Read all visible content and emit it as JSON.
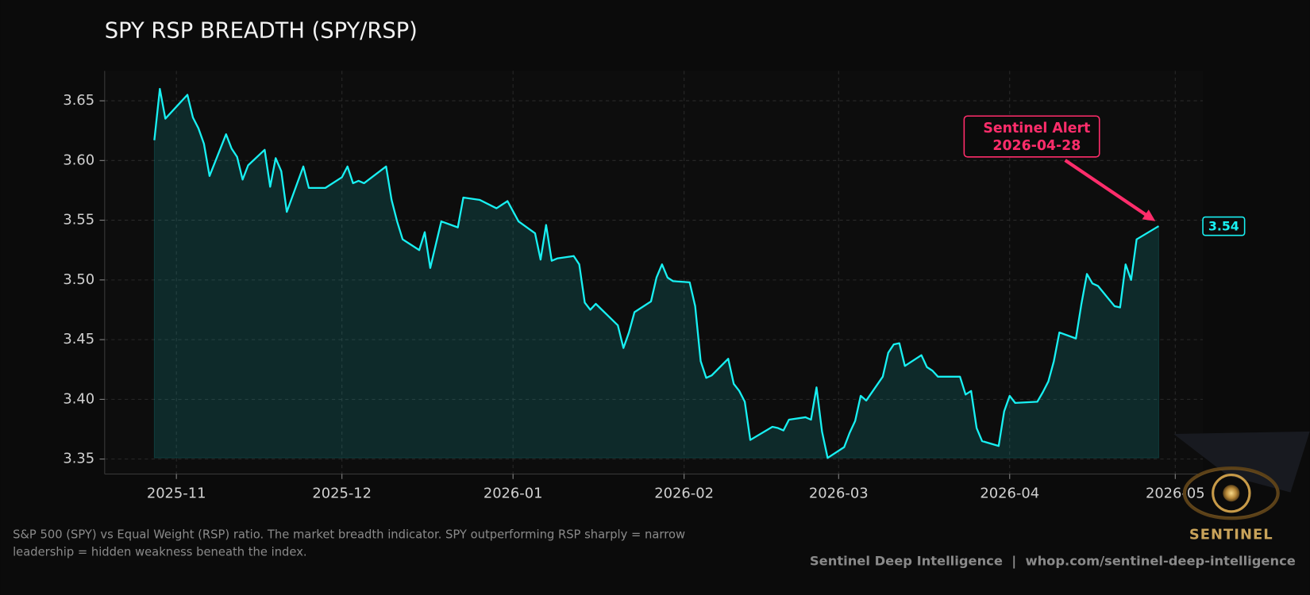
{
  "chart_data": {
    "type": "line",
    "title": "SPY RSP BREADTH (SPY/RSP)",
    "color": "#18f0f2",
    "x": [
      "2025-10-28",
      "2025-10-29",
      "2025-10-30",
      "2025-11-03",
      "2025-11-04",
      "2025-11-05",
      "2025-11-06",
      "2025-11-07",
      "2025-11-10",
      "2025-11-11",
      "2025-11-12",
      "2025-11-13",
      "2025-11-14",
      "2025-11-17",
      "2025-11-18",
      "2025-11-19",
      "2025-11-20",
      "2025-11-21",
      "2025-11-24",
      "2025-11-25",
      "2025-11-28",
      "2025-12-01",
      "2025-12-02",
      "2025-12-03",
      "2025-12-04",
      "2025-12-05",
      "2025-12-09",
      "2025-12-10",
      "2025-12-11",
      "2025-12-12",
      "2025-12-15",
      "2025-12-16",
      "2025-12-17",
      "2025-12-19",
      "2025-12-22",
      "2025-12-23",
      "2025-12-26",
      "2025-12-29",
      "2025-12-30",
      "2025-12-31",
      "2026-01-02",
      "2026-01-05",
      "2026-01-06",
      "2026-01-07",
      "2026-01-08",
      "2026-01-09",
      "2026-01-12",
      "2026-01-13",
      "2026-01-14",
      "2026-01-15",
      "2026-01-16",
      "2026-01-20",
      "2026-01-21",
      "2026-01-22",
      "2026-01-23",
      "2026-01-26",
      "2026-01-27",
      "2026-01-28",
      "2026-01-29",
      "2026-01-30",
      "2026-02-02",
      "2026-02-03",
      "2026-02-04",
      "2026-02-05",
      "2026-02-06",
      "2026-02-09",
      "2026-02-10",
      "2026-02-11",
      "2026-02-12",
      "2026-02-13",
      "2026-02-17",
      "2026-02-18",
      "2026-02-19",
      "2026-02-20",
      "2026-02-23",
      "2026-02-24",
      "2026-02-25",
      "2026-02-26",
      "2026-02-27",
      "2026-03-02",
      "2026-03-03",
      "2026-03-04",
      "2026-03-05",
      "2026-03-06",
      "2026-03-09",
      "2026-03-10",
      "2026-03-11",
      "2026-03-12",
      "2026-03-13",
      "2026-03-16",
      "2026-03-17",
      "2026-03-18",
      "2026-03-19",
      "2026-03-20",
      "2026-03-23",
      "2026-03-24",
      "2026-03-25",
      "2026-03-26",
      "2026-03-27",
      "2026-03-30",
      "2026-03-31",
      "2026-04-01",
      "2026-04-02",
      "2026-04-06",
      "2026-04-07",
      "2026-04-08",
      "2026-04-09",
      "2026-04-10",
      "2026-04-13",
      "2026-04-14",
      "2026-04-15",
      "2026-04-16",
      "2026-04-17",
      "2026-04-20",
      "2026-04-21",
      "2026-04-22",
      "2026-04-23",
      "2026-04-24",
      "2026-04-28"
    ],
    "values": [
      3.617,
      3.66,
      3.635,
      3.655,
      3.636,
      3.627,
      3.614,
      3.587,
      3.622,
      3.61,
      3.603,
      3.584,
      3.596,
      3.609,
      3.578,
      3.602,
      3.591,
      3.557,
      3.595,
      3.577,
      3.577,
      3.586,
      3.595,
      3.581,
      3.583,
      3.581,
      3.595,
      3.567,
      3.549,
      3.534,
      3.525,
      3.54,
      3.51,
      3.549,
      3.544,
      3.569,
      3.567,
      3.56,
      3.563,
      3.566,
      3.549,
      3.539,
      3.517,
      3.546,
      3.516,
      3.518,
      3.52,
      3.513,
      3.481,
      3.475,
      3.48,
      3.462,
      3.443,
      3.456,
      3.473,
      3.482,
      3.502,
      3.513,
      3.502,
      3.499,
      3.498,
      3.478,
      3.432,
      3.418,
      3.42,
      3.434,
      3.413,
      3.407,
      3.398,
      3.366,
      3.377,
      3.376,
      3.374,
      3.383,
      3.385,
      3.383,
      3.41,
      3.373,
      3.351,
      3.36,
      3.372,
      3.382,
      3.403,
      3.399,
      3.419,
      3.439,
      3.446,
      3.447,
      3.428,
      3.437,
      3.427,
      3.424,
      3.419,
      3.419,
      3.419,
      3.404,
      3.407,
      3.376,
      3.365,
      3.361,
      3.39,
      3.403,
      3.397,
      3.398,
      3.406,
      3.415,
      3.432,
      3.456,
      3.451,
      3.48,
      3.505,
      3.497,
      3.495,
      3.478,
      3.477,
      3.513,
      3.5,
      3.534,
      3.545
    ],
    "last_label": "3.54",
    "annotation": [
      "Sentinel Alert",
      "2026-04-28"
    ],
    "xlim": [
      "2025-10-19",
      "2026-05-06"
    ],
    "xticks": [
      {
        "value": "2025-11-01",
        "label": "2025-11"
      },
      {
        "value": "2025-12-01",
        "label": "2025-12"
      },
      {
        "value": "2026-01-01",
        "label": "2026-01"
      },
      {
        "value": "2026-02-01",
        "label": "2026-02"
      },
      {
        "value": "2026-03-01",
        "label": "2026-03"
      },
      {
        "value": "2026-04-01",
        "label": "2026-04"
      },
      {
        "value": "2026-05-01",
        "label": "2026-05"
      }
    ],
    "ylim": [
      3.3375,
      3.675
    ],
    "yticks": [
      3.35,
      {
        "value": 3.4,
        "label": "3.40"
      },
      3.45,
      {
        "value": 3.5,
        "label": "3.50"
      },
      3.55,
      {
        "value": 3.6,
        "label": "3.60"
      },
      3.65
    ],
    "grid": true,
    "caption": "S&P 500 (SPY) vs Equal Weight (RSP) ratio. The market breadth indicator. SPY outperforming RSP sharply = narrow leadership = hidden weakness beneath the index.",
    "credit": "Sentinel Deep Intelligence  |  whop.com/sentinel-deep-intelligence",
    "logo": "SENTINEL"
  }
}
